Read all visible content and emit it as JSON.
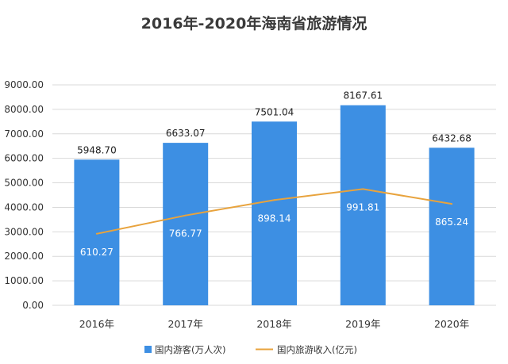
{
  "chart_data": {
    "type": "bar",
    "title": "2016年-2020年海南省旅游情况",
    "categories": [
      "2016年",
      "2017年",
      "2018年",
      "2019年",
      "2020年"
    ],
    "series": [
      {
        "name": "国内游客(万人次)",
        "type": "bar",
        "color": "#3d8fe3",
        "values": [
          5948.7,
          6633.07,
          7501.04,
          8167.61,
          6432.68
        ],
        "labels": [
          "5948.70",
          "6633.07",
          "7501.04",
          "8167.61",
          "6432.68"
        ]
      },
      {
        "name": "国内旅游收入(亿元)",
        "type": "line",
        "color": "#e8a33d",
        "values": [
          610.27,
          766.77,
          898.14,
          991.81,
          865.24
        ],
        "labels": [
          "610.27",
          "766.77",
          "898.14",
          "991.81",
          "865.24"
        ]
      }
    ],
    "y_ticks": [
      "0.00",
      "1000.00",
      "2000.00",
      "3000.00",
      "4000.00",
      "5000.00",
      "6000.00",
      "7000.00",
      "8000.00",
      "9000.00"
    ],
    "ylim": [
      0,
      9000
    ],
    "grid": true,
    "legend_position": "bottom"
  }
}
